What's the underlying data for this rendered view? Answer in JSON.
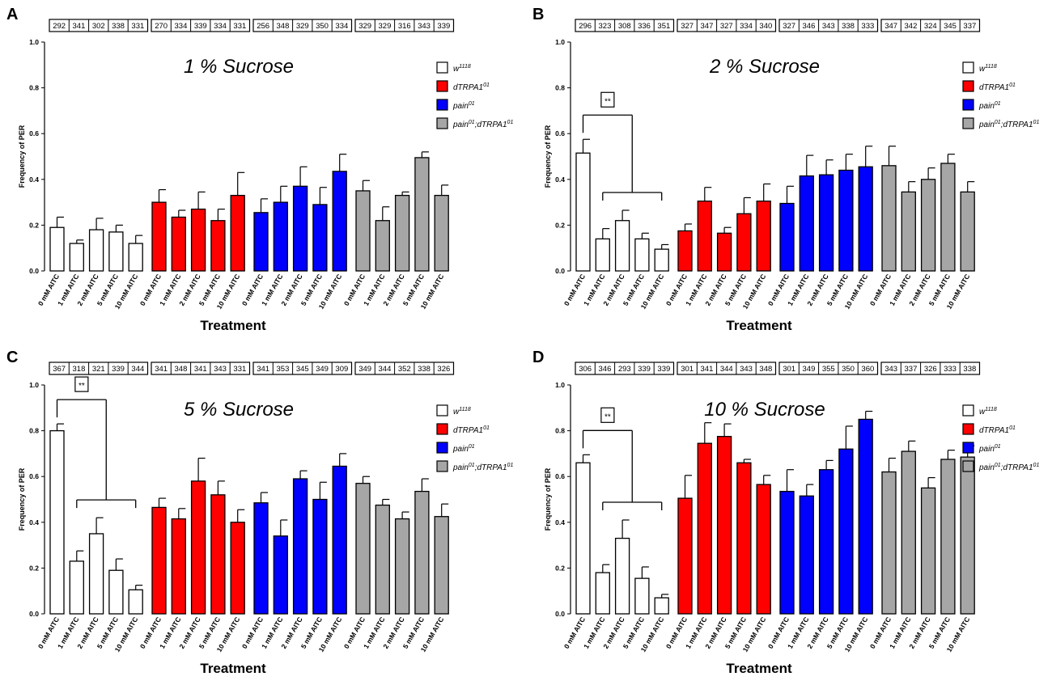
{
  "chart_data": [
    {
      "type": "bar",
      "panel_label": "A",
      "title": "1 % Sucrose",
      "xlabel": "Treatment",
      "ylabel": "Frequency of PER",
      "ylim": [
        0,
        1.0
      ],
      "yticks": [
        "0.0",
        "0.2",
        "0.4",
        "0.6",
        "0.8",
        "1.0"
      ],
      "categories": [
        "0 mM AITC",
        "1 mM AITC",
        "2 mM AITC",
        "5 mM AITC",
        "10 mM AITC"
      ],
      "series": [
        {
          "name": "w",
          "sup": "1118",
          "color": "#ffffff",
          "values": [
            0.19,
            0.12,
            0.18,
            0.17,
            0.12
          ],
          "errors": [
            0.045,
            0.015,
            0.05,
            0.03,
            0.035
          ],
          "n": [
            "292",
            "341",
            "302",
            "338",
            "331"
          ]
        },
        {
          "name": "dTRPA1",
          "sup": "01",
          "color": "#ff0000",
          "values": [
            0.3,
            0.235,
            0.27,
            0.22,
            0.33
          ],
          "errors": [
            0.055,
            0.03,
            0.075,
            0.05,
            0.1
          ],
          "n": [
            "270",
            "334",
            "339",
            "334",
            "331"
          ]
        },
        {
          "name": "pain",
          "sup": "01",
          "color": "#0000ff",
          "values": [
            0.255,
            0.3,
            0.37,
            0.29,
            0.435
          ],
          "errors": [
            0.06,
            0.07,
            0.085,
            0.075,
            0.075
          ],
          "n": [
            "256",
            "348",
            "329",
            "350",
            "334"
          ]
        },
        {
          "name": "pain",
          "sup": "01",
          "name2": ";dTRPA1",
          "sup2": "01",
          "color": "#a6a6a6",
          "values": [
            0.35,
            0.22,
            0.33,
            0.495,
            0.33
          ],
          "errors": [
            0.045,
            0.06,
            0.015,
            0.025,
            0.045
          ],
          "n": [
            "329",
            "329",
            "316",
            "343",
            "339"
          ]
        }
      ],
      "significance": null
    },
    {
      "type": "bar",
      "panel_label": "B",
      "title": "2 % Sucrose",
      "xlabel": "Treatment",
      "ylabel": "Frequency of PER",
      "ylim": [
        0,
        1.0
      ],
      "yticks": [
        "0.0",
        "0.2",
        "0.4",
        "0.6",
        "0.8",
        "1.0"
      ],
      "categories": [
        "0 mM AITC",
        "1 mM AITC",
        "2 mM AITC",
        "5 mM AITC",
        "10 mM AITC"
      ],
      "series": [
        {
          "name": "w",
          "sup": "1118",
          "color": "#ffffff",
          "values": [
            0.515,
            0.14,
            0.22,
            0.14,
            0.095
          ],
          "errors": [
            0.06,
            0.045,
            0.045,
            0.025,
            0.02
          ],
          "n": [
            "296",
            "323",
            "308",
            "336",
            "351"
          ]
        },
        {
          "name": "dTRPA1",
          "sup": "01",
          "color": "#ff0000",
          "values": [
            0.175,
            0.305,
            0.165,
            0.25,
            0.305
          ],
          "errors": [
            0.03,
            0.06,
            0.025,
            0.07,
            0.075
          ],
          "n": [
            "327",
            "347",
            "327",
            "334",
            "340"
          ]
        },
        {
          "name": "pain",
          "sup": "01",
          "color": "#0000ff",
          "values": [
            0.295,
            0.415,
            0.42,
            0.44,
            0.455
          ],
          "errors": [
            0.075,
            0.09,
            0.065,
            0.07,
            0.09
          ],
          "n": [
            "327",
            "346",
            "343",
            "338",
            "333"
          ]
        },
        {
          "name": "pain",
          "sup": "01",
          "name2": ";dTRPA1",
          "sup2": "01",
          "color": "#a6a6a6",
          "values": [
            0.46,
            0.345,
            0.4,
            0.47,
            0.345
          ],
          "errors": [
            0.085,
            0.045,
            0.05,
            0.04,
            0.045
          ],
          "n": [
            "347",
            "342",
            "324",
            "345",
            "337"
          ]
        }
      ],
      "significance": "**"
    },
    {
      "type": "bar",
      "panel_label": "C",
      "title": "5 % Sucrose",
      "xlabel": "Treatment",
      "ylabel": "Frequency of PER",
      "ylim": [
        0,
        1.0
      ],
      "yticks": [
        "0.0",
        "0.2",
        "0.4",
        "0.6",
        "0.8",
        "1.0"
      ],
      "categories": [
        "0 mM AITC",
        "1 mM AITC",
        "2 mM AITC",
        "5 mM AITC",
        "10 mM AITC"
      ],
      "series": [
        {
          "name": "w",
          "sup": "1118",
          "color": "#ffffff",
          "values": [
            0.8,
            0.23,
            0.35,
            0.19,
            0.105
          ],
          "errors": [
            0.03,
            0.045,
            0.07,
            0.05,
            0.02
          ],
          "n": [
            "367",
            "318",
            "321",
            "339",
            "344"
          ]
        },
        {
          "name": "dTRPA1",
          "sup": "01",
          "color": "#ff0000",
          "values": [
            0.465,
            0.415,
            0.58,
            0.52,
            0.4
          ],
          "errors": [
            0.04,
            0.045,
            0.1,
            0.06,
            0.055
          ],
          "n": [
            "341",
            "348",
            "341",
            "343",
            "331"
          ]
        },
        {
          "name": "pain",
          "sup": "01",
          "color": "#0000ff",
          "values": [
            0.485,
            0.34,
            0.59,
            0.5,
            0.645
          ],
          "errors": [
            0.045,
            0.07,
            0.035,
            0.075,
            0.055
          ],
          "n": [
            "341",
            "353",
            "345",
            "349",
            "309"
          ]
        },
        {
          "name": "pain",
          "sup": "01",
          "name2": ";dTRPA1",
          "sup2": "01",
          "color": "#a6a6a6",
          "values": [
            0.57,
            0.475,
            0.415,
            0.535,
            0.425
          ],
          "errors": [
            0.03,
            0.025,
            0.03,
            0.055,
            0.055
          ],
          "n": [
            "349",
            "344",
            "352",
            "338",
            "326"
          ]
        }
      ],
      "significance": "**"
    },
    {
      "type": "bar",
      "panel_label": "D",
      "title": "10 % Sucrose",
      "xlabel": "Treatment",
      "ylabel": "Frequency of PER",
      "ylim": [
        0,
        1.0
      ],
      "yticks": [
        "0.0",
        "0.2",
        "0.4",
        "0.6",
        "0.8",
        "1.0"
      ],
      "categories": [
        "0 mM AITC",
        "1 mM AITC",
        "2 mM AITC",
        "5 mM AITC",
        "10 mM AITC"
      ],
      "series": [
        {
          "name": "w",
          "sup": "1118",
          "color": "#ffffff",
          "values": [
            0.66,
            0.18,
            0.33,
            0.155,
            0.07
          ],
          "errors": [
            0.035,
            0.035,
            0.08,
            0.05,
            0.015
          ],
          "n": [
            "306",
            "346",
            "293",
            "339",
            "339"
          ]
        },
        {
          "name": "dTRPA1",
          "sup": "01",
          "color": "#ff0000",
          "values": [
            0.505,
            0.745,
            0.775,
            0.66,
            0.565
          ],
          "errors": [
            0.1,
            0.09,
            0.055,
            0.015,
            0.04
          ],
          "n": [
            "301",
            "341",
            "344",
            "343",
            "348"
          ]
        },
        {
          "name": "pain",
          "sup": "01",
          "color": "#0000ff",
          "values": [
            0.535,
            0.515,
            0.63,
            0.72,
            0.85
          ],
          "errors": [
            0.095,
            0.05,
            0.04,
            0.1,
            0.035
          ],
          "n": [
            "301",
            "349",
            "355",
            "350",
            "360"
          ]
        },
        {
          "name": "pain",
          "sup": "01",
          "name2": ";dTRPA1",
          "sup2": "01",
          "color": "#a6a6a6",
          "values": [
            0.62,
            0.71,
            0.55,
            0.675,
            0.685
          ],
          "errors": [
            0.06,
            0.045,
            0.045,
            0.04,
            0.05
          ],
          "n": [
            "343",
            "337",
            "326",
            "333",
            "338"
          ]
        }
      ],
      "significance": "**"
    }
  ]
}
